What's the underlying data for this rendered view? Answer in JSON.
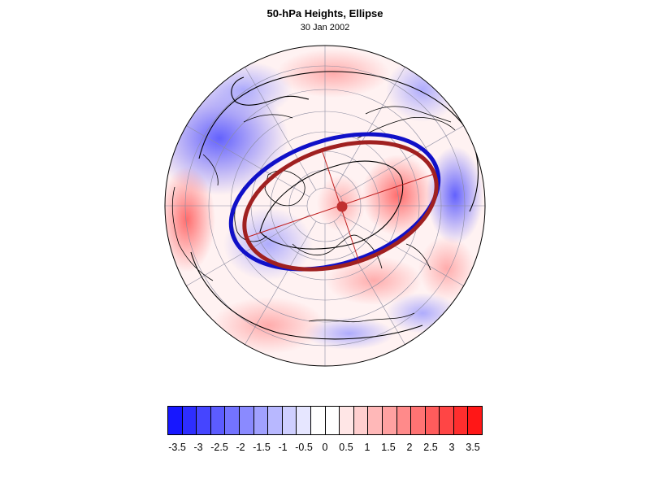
{
  "title": "50-hPa Heights, Ellipse",
  "subtitle": "30 Jan 2002",
  "colorbar": {
    "labels": [
      "-3.5",
      "-3",
      "-2.5",
      "-2",
      "-1.5",
      "-1",
      "-0.5",
      "0",
      "0.5",
      "1",
      "1.5",
      "2",
      "2.5",
      "3",
      "3.5"
    ],
    "colors": [
      "#1717ff",
      "#2e2eff",
      "#4545ff",
      "#5c5cff",
      "#7373ff",
      "#8a8aff",
      "#a1a1ff",
      "#b8b8ff",
      "#cfcfff",
      "#e6e6ff",
      "#ffffff",
      "#ffffff",
      "#ffe6e6",
      "#ffcfcf",
      "#ffb8b8",
      "#ffa1a1",
      "#ff8a8a",
      "#ff7373",
      "#ff5c5c",
      "#ff4545",
      "#ff2e2e",
      "#ff1717"
    ]
  },
  "map": {
    "projection": "polar stereographic (Northern Hemisphere)",
    "ellipse_colors": {
      "ellipse_a": "#1010c8",
      "ellipse_b": "#a02020",
      "vortex_center": "#c03030"
    }
  }
}
